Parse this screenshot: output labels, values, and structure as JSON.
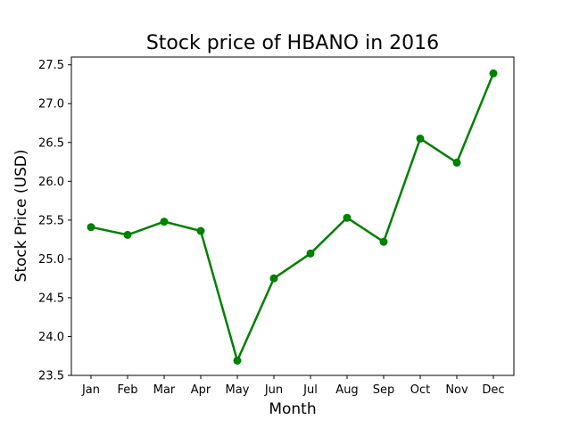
{
  "chart_data": {
    "type": "line",
    "title": "Stock price of HBANO in 2016",
    "xlabel": "Month",
    "ylabel": "Stock Price (USD)",
    "categories": [
      "Jan",
      "Feb",
      "Mar",
      "Apr",
      "May",
      "Jun",
      "Jul",
      "Aug",
      "Sep",
      "Oct",
      "Nov",
      "Dec"
    ],
    "series": [
      {
        "values": [
          25.41,
          25.31,
          25.48,
          25.36,
          23.69,
          24.75,
          25.07,
          25.53,
          25.22,
          26.55,
          26.24,
          27.39
        ],
        "color": "#008000",
        "marker": "circle"
      }
    ],
    "ylim": [
      23.5,
      27.6
    ],
    "yticks": [
      "23.5",
      "24.0",
      "24.5",
      "25.0",
      "25.5",
      "26.0",
      "26.5",
      "27.0",
      "27.5"
    ],
    "grid": false,
    "legend": "none"
  }
}
